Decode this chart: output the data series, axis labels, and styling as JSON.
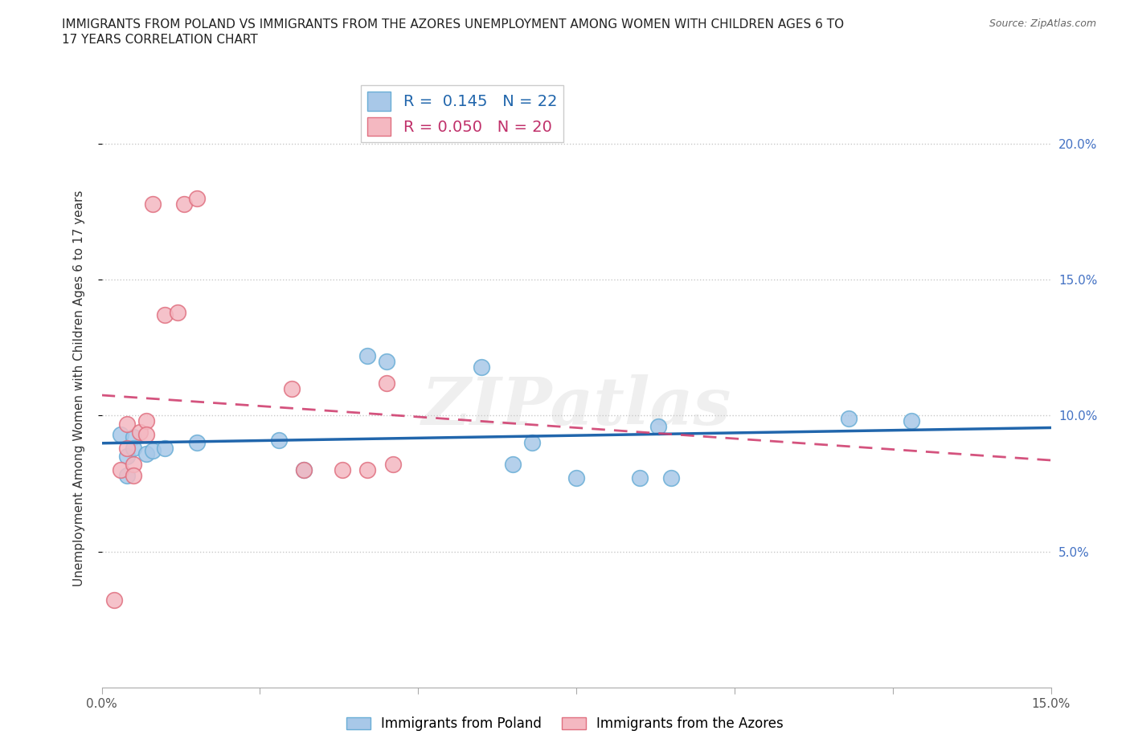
{
  "title_line1": "IMMIGRANTS FROM POLAND VS IMMIGRANTS FROM THE AZORES UNEMPLOYMENT AMONG WOMEN WITH CHILDREN AGES 6 TO",
  "title_line2": "17 YEARS CORRELATION CHART",
  "source": "Source: ZipAtlas.com",
  "ylabel": "Unemployment Among Women with Children Ages 6 to 17 years",
  "xlim": [
    0.0,
    0.15
  ],
  "ylim": [
    0.0,
    0.22
  ],
  "poland_color": "#a8c8e8",
  "poland_edge_color": "#6aaed6",
  "azores_color": "#f4b8c1",
  "azores_edge_color": "#e07080",
  "poland_line_color": "#2166ac",
  "azores_line_color": "#d04070",
  "poland_R": 0.145,
  "poland_N": 22,
  "azores_R": 0.05,
  "azores_N": 20,
  "poland_scatter_x": [
    0.003,
    0.004,
    0.004,
    0.005,
    0.005,
    0.007,
    0.008,
    0.01,
    0.015,
    0.028,
    0.032,
    0.042,
    0.045,
    0.06,
    0.065,
    0.068,
    0.075,
    0.085,
    0.088,
    0.09,
    0.118,
    0.128
  ],
  "poland_scatter_y": [
    0.093,
    0.085,
    0.078,
    0.092,
    0.088,
    0.086,
    0.087,
    0.088,
    0.09,
    0.091,
    0.08,
    0.122,
    0.12,
    0.118,
    0.082,
    0.09,
    0.077,
    0.077,
    0.096,
    0.077,
    0.099,
    0.098
  ],
  "azores_scatter_x": [
    0.002,
    0.003,
    0.004,
    0.004,
    0.005,
    0.005,
    0.006,
    0.007,
    0.007,
    0.008,
    0.01,
    0.012,
    0.013,
    0.015,
    0.03,
    0.032,
    0.038,
    0.042,
    0.045,
    0.046
  ],
  "azores_scatter_y": [
    0.032,
    0.08,
    0.088,
    0.097,
    0.082,
    0.078,
    0.094,
    0.098,
    0.093,
    0.178,
    0.137,
    0.138,
    0.178,
    0.18,
    0.11,
    0.08,
    0.08,
    0.08,
    0.112,
    0.082
  ],
  "watermark": "ZIPatlas"
}
